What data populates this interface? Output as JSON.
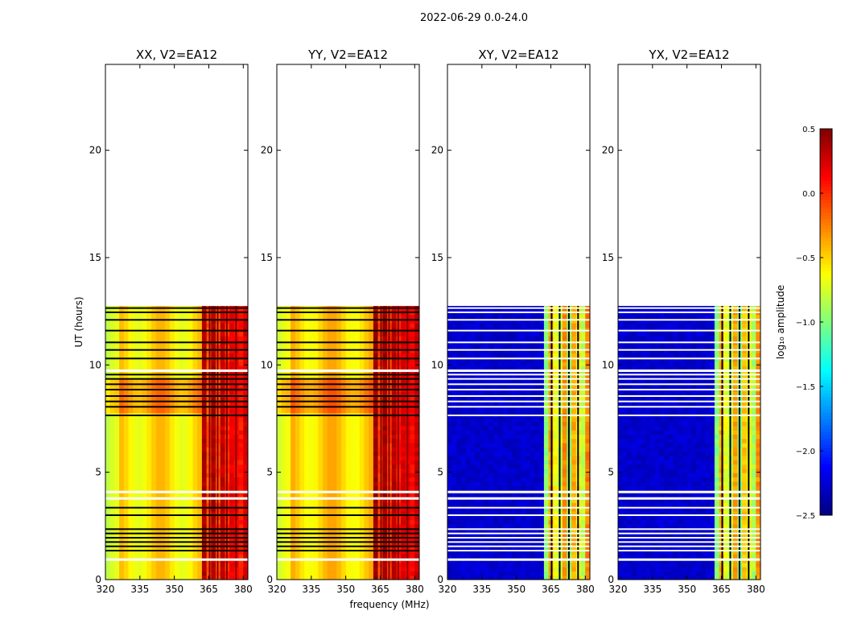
{
  "figure": {
    "suptitle": "2022-06-29 0.0-24.0",
    "ylabel": "UT (hours)",
    "xlabel": "frequency (MHz)",
    "colorbar_label": "log₁₀ amplitude"
  },
  "chart_data": {
    "type": "heatmap",
    "x": {
      "label": "frequency (MHz)",
      "range": [
        320,
        382
      ],
      "ticks": [
        320,
        335,
        350,
        365,
        380
      ],
      "tick_labels": [
        "320",
        "335",
        "350",
        "365",
        "380"
      ]
    },
    "y": {
      "label": "UT (hours)",
      "range": [
        0,
        24
      ],
      "ticks": [
        0,
        5,
        10,
        15,
        20
      ],
      "tick_labels": [
        "0",
        "5",
        "10",
        "15",
        "20"
      ]
    },
    "colorbar": {
      "label": "log10 amplitude",
      "range": [
        -2.5,
        0.5
      ],
      "cmap": "jet",
      "ticks": [
        -2.5,
        -2.0,
        -1.5,
        -1.0,
        -0.5,
        0.0,
        0.5
      ],
      "tick_labels": [
        "−2.5",
        "−2.0",
        "−1.5",
        "−1.0",
        "−0.5",
        "0.0",
        "0.5"
      ]
    },
    "data_extent_hours": [
      0,
      12.75
    ],
    "flagged_rows_hours": [
      0.95,
      1.35,
      1.55,
      1.75,
      1.95,
      2.15,
      2.35,
      3.0,
      3.35,
      3.8,
      4.1,
      7.65,
      8.05,
      8.3,
      8.55,
      8.85,
      9.1,
      9.35,
      9.55,
      9.75,
      10.3,
      10.7,
      11.05,
      11.6,
      12.1,
      12.45,
      12.65
    ],
    "panels": [
      {
        "title": "XX, V2=EA12",
        "kind": "parallel",
        "base_level": -0.55,
        "band_level": 0.05
      },
      {
        "title": "YY, V2=EA12",
        "kind": "parallel",
        "base_level": -0.5,
        "band_level": 0.1
      },
      {
        "title": "XY, V2=EA12",
        "kind": "cross",
        "base_level": -2.35,
        "band_level": -0.7
      },
      {
        "title": "YX, V2=EA12",
        "kind": "cross",
        "base_level": -2.35,
        "band_level": -0.75
      }
    ],
    "strong_band_mhz": [
      362.5,
      381
    ]
  }
}
